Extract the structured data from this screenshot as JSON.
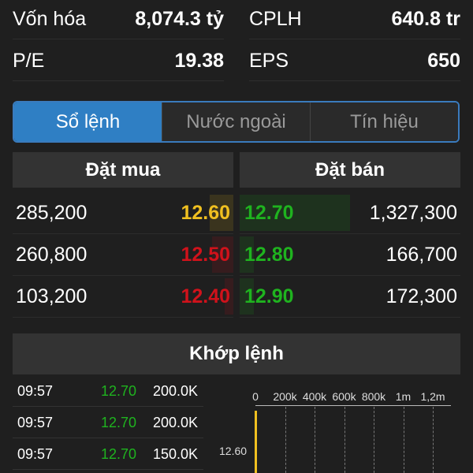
{
  "stats": [
    {
      "label": "Vốn hóa",
      "value": "8,074.3 tỷ"
    },
    {
      "label": "CPLH",
      "value": "640.8 tr"
    },
    {
      "label": "P/E",
      "value": "19.38"
    },
    {
      "label": "EPS",
      "value": "650"
    }
  ],
  "tabs": [
    {
      "label": "Sổ lệnh",
      "active": true
    },
    {
      "label": "Nước ngoài"
    },
    {
      "label": "Tín hiệu"
    }
  ],
  "orderbook": {
    "bid_header": "Đặt mua",
    "ask_header": "Đặt bán",
    "rows": [
      {
        "bid_vol": "285,200",
        "bid_price": "12.60",
        "bid_color": "#f0c020",
        "ask_price": "12.70",
        "ask_vol": "1,327,300",
        "ask_color": "#1fb31f"
      },
      {
        "bid_vol": "260,800",
        "bid_price": "12.50",
        "bid_color": "#d0121b",
        "ask_price": "12.80",
        "ask_vol": "166,700",
        "ask_color": "#1fb31f"
      },
      {
        "bid_vol": "103,200",
        "bid_price": "12.40",
        "bid_color": "#d0121b",
        "ask_price": "12.90",
        "ask_vol": "172,300",
        "ask_color": "#1fb31f"
      }
    ]
  },
  "matched": {
    "title": "Khớp lệnh",
    "trades": [
      {
        "time": "09:57",
        "price": "12.70",
        "vol": "200.0K"
      },
      {
        "time": "09:57",
        "price": "12.70",
        "vol": "200.0K"
      },
      {
        "time": "09:57",
        "price": "12.70",
        "vol": "150.0K"
      }
    ],
    "chart": {
      "x_ticks": [
        "0",
        "200k",
        "400k",
        "600k",
        "800k",
        "1m",
        "1,2m"
      ],
      "y_labels": [
        "12.60"
      ],
      "bar_color": "#f0c020"
    }
  }
}
